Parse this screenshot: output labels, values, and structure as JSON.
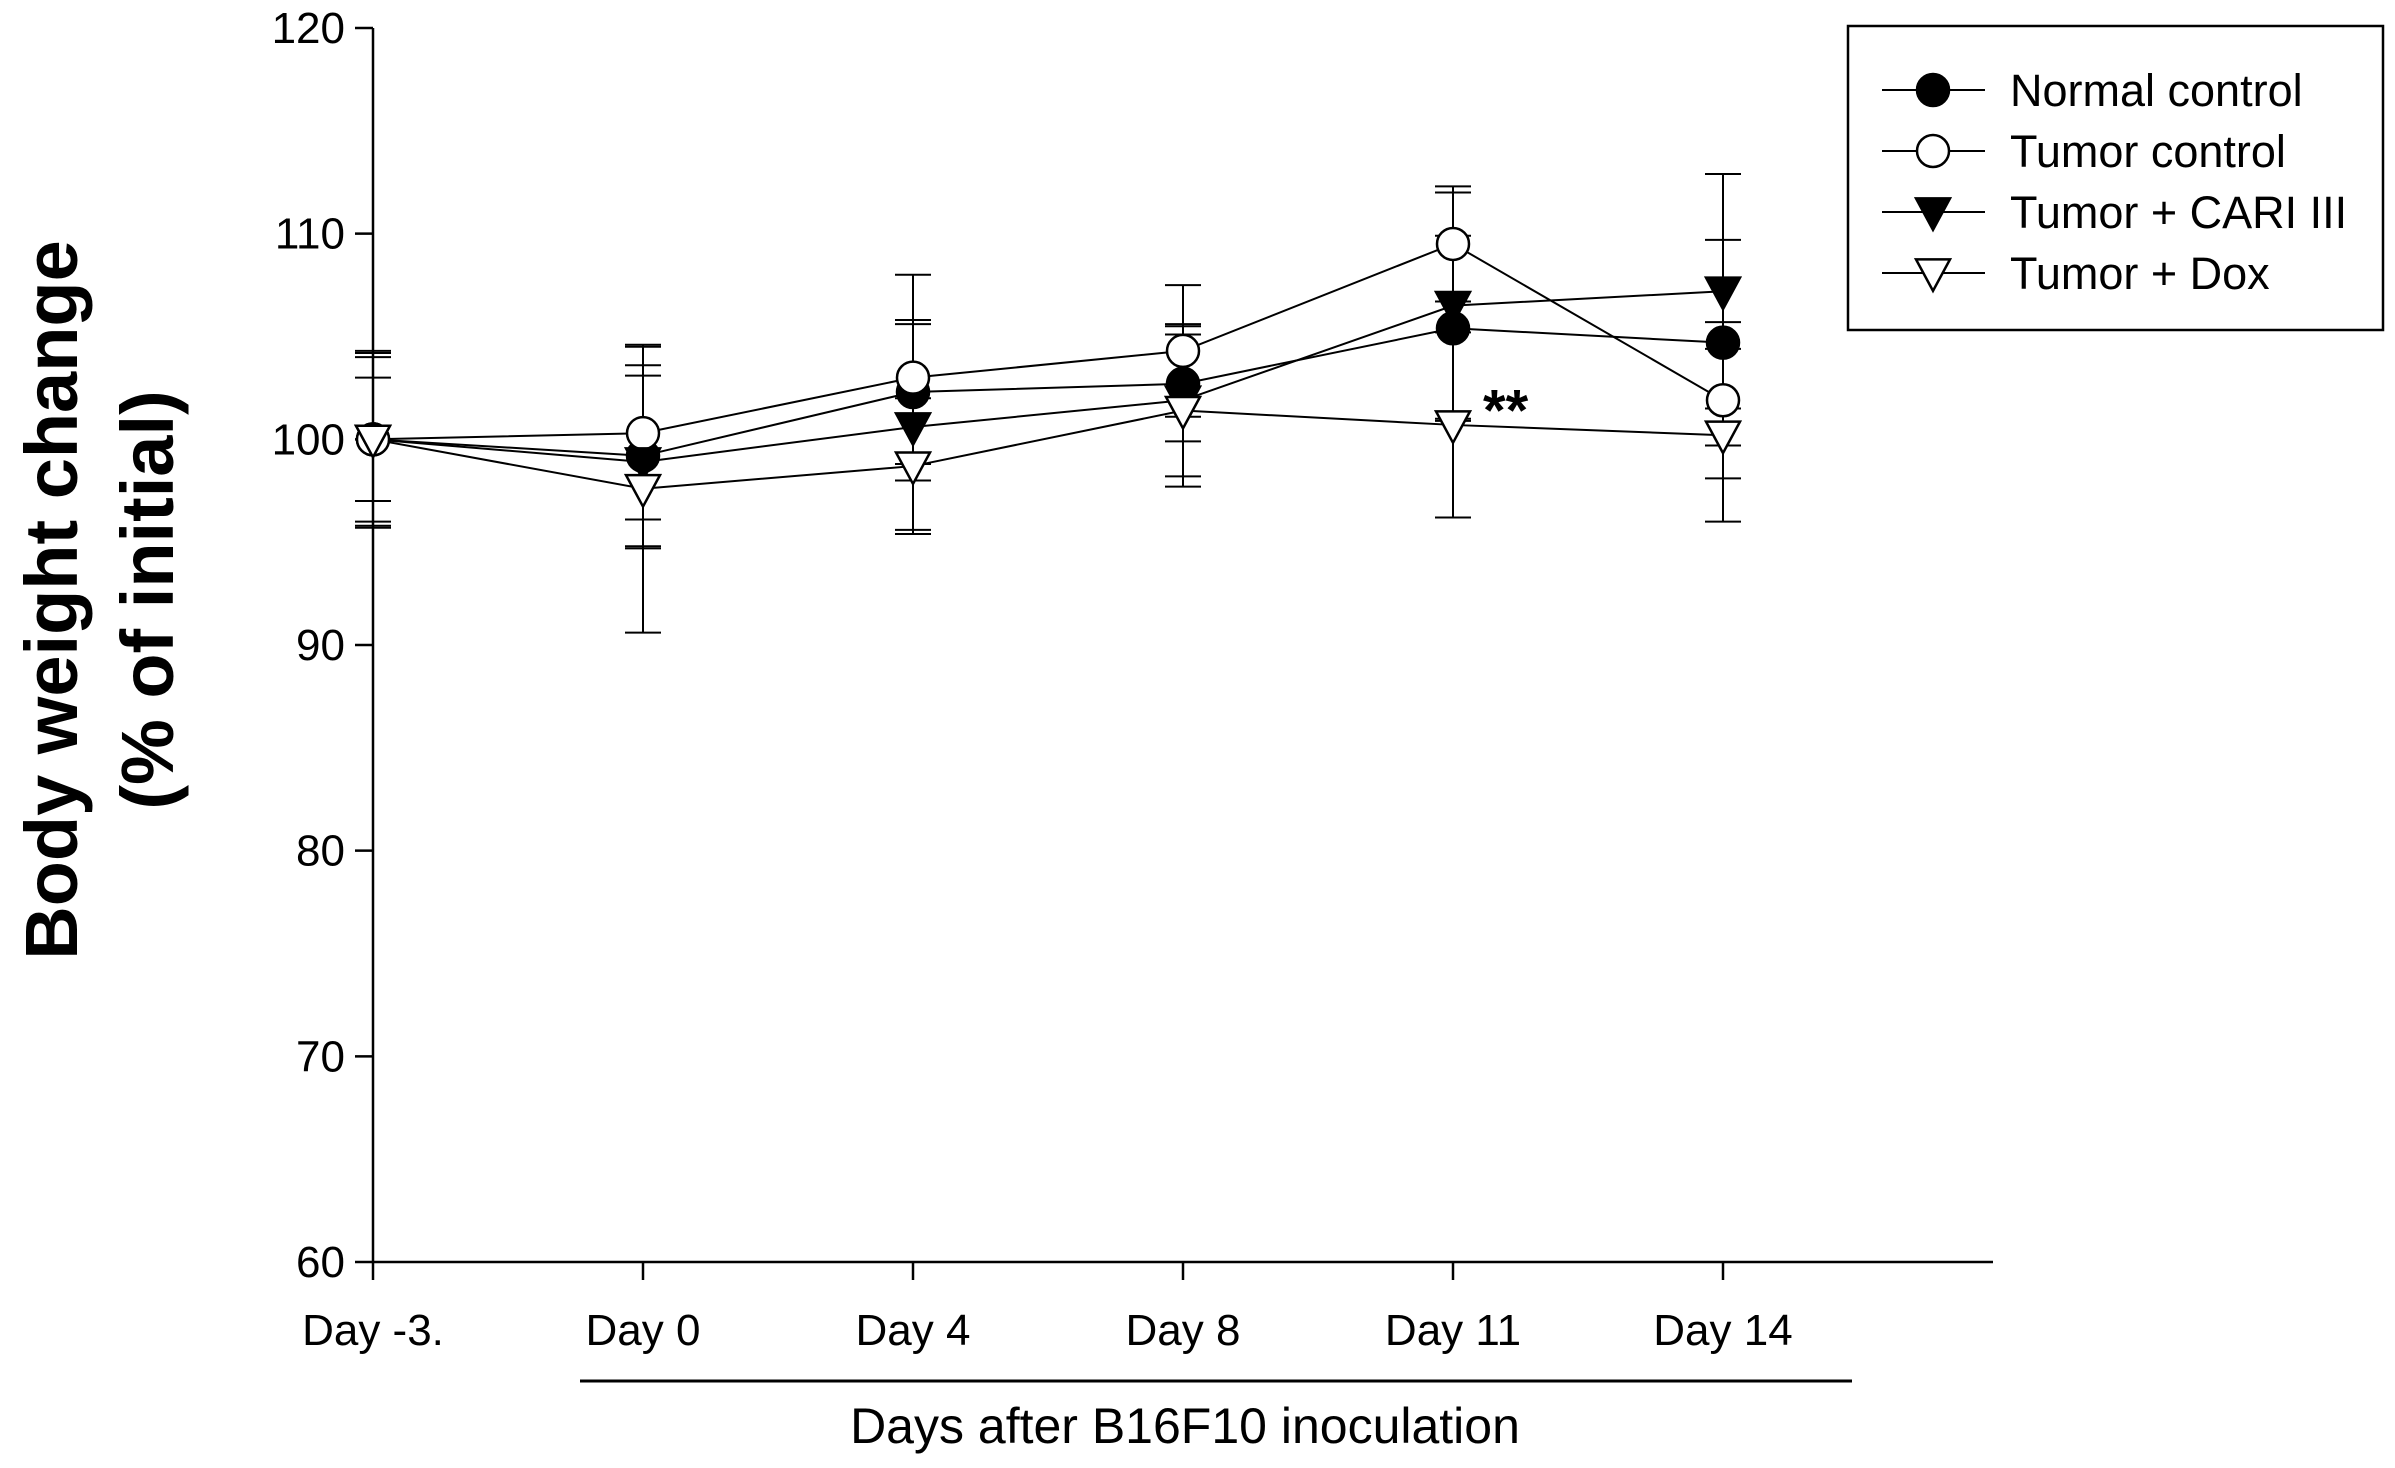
{
  "chart_data": {
    "type": "line",
    "title": "",
    "xlabel": "Days after B16F10 inoculation",
    "ylabel_lines": [
      "Body weight change",
      "(% of initial)"
    ],
    "categories": [
      "Day -3.",
      "Day 0",
      "Day 4",
      "Day 8",
      "Day 11",
      "Day 14"
    ],
    "ylim": [
      60,
      120
    ],
    "yticks": [
      60,
      70,
      80,
      90,
      100,
      110,
      120
    ],
    "grid": false,
    "legend_position": "top-right",
    "series": [
      {
        "name": "Normal control",
        "marker": "circle-filled",
        "values": [
          100,
          99.2,
          102.3,
          102.7,
          105.4,
          104.7
        ],
        "errors": [
          4.0,
          4.4,
          3.5,
          2.8,
          4.5,
          5.0
        ]
      },
      {
        "name": "Tumor control",
        "marker": "circle-open",
        "values": [
          100,
          100.3,
          103.0,
          104.3,
          109.5,
          101.9
        ],
        "errors": [
          4.3,
          4.2,
          5.0,
          3.2,
          2.8,
          3.8
        ]
      },
      {
        "name": "Tumor + CARI III",
        "marker": "triangle-filled",
        "values": [
          100,
          98.9,
          100.6,
          101.9,
          106.5,
          107.2
        ],
        "errors": [
          4.2,
          4.2,
          5.0,
          3.7,
          5.5,
          5.7
        ]
      },
      {
        "name": "Tumor + Dox",
        "marker": "triangle-open",
        "values": [
          100,
          97.6,
          98.7,
          101.4,
          100.7,
          100.2
        ],
        "errors": [
          3.0,
          7.0,
          3.3,
          3.7,
          4.5,
          4.2
        ]
      }
    ],
    "annotations": [
      {
        "text": "**",
        "category": "Day 11",
        "y": 101.8
      }
    ]
  }
}
